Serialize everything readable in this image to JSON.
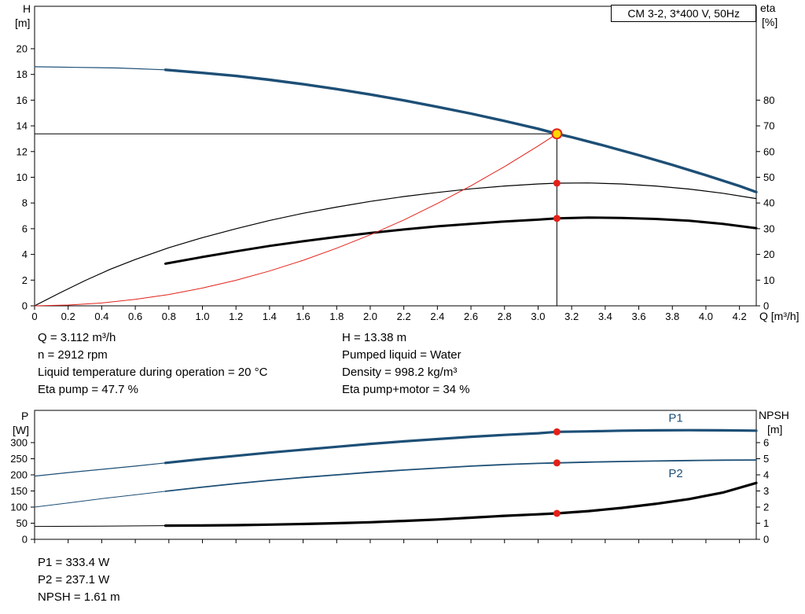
{
  "window": {
    "model_box_label": "CM 3-2, 3*400 V, 50Hz"
  },
  "results_top": {
    "left": [
      "Q = 3.112 m³/h",
      "n = 2912 rpm",
      "Liquid temperature during operation = 20 °C",
      "Eta pump = 47.7 %"
    ],
    "right": [
      "H = 13.38 m",
      "Pumped liquid = Water",
      "Density = 998.2 kg/m³",
      "Eta pump+motor = 34 %"
    ]
  },
  "results_bottom": [
    "P1 = 333.4 W",
    "P2 = 237.1 W",
    "NPSH = 1.61 m"
  ],
  "colors": {
    "curve_blue": "#1d4f76",
    "curve_red": "#e32119",
    "curve_black": "#000000",
    "point_yellow": "#ffd800"
  },
  "chart_data": [
    {
      "type": "line",
      "title": "CM 3-2, 3*400 V, 50Hz",
      "x": {
        "title": "Q [m³/h]",
        "min": 0,
        "max": 4.3,
        "ticks": [
          0,
          0.2,
          0.4,
          0.6,
          0.8,
          1,
          1.2,
          1.4,
          1.6,
          1.8,
          2,
          2.2,
          2.4,
          2.6,
          2.8,
          3,
          3.2,
          3.4,
          3.6,
          3.8,
          4,
          4.2
        ],
        "labels": [
          "0",
          "0.2",
          "0.4",
          "0.6",
          "0.8",
          "1.0",
          "1.2",
          "1.4",
          "1.6",
          "1.8",
          "2.0",
          "2.2",
          "2.4",
          "2.6",
          "2.8",
          "3.0",
          "3.2",
          "3.4",
          "3.6",
          "3.8",
          "4.0",
          "4.2"
        ]
      },
      "y1": {
        "letter": "H",
        "unit": "[m]",
        "min": 0,
        "max": 23.3,
        "ticks": [
          0,
          2,
          4,
          6,
          8,
          10,
          12,
          14,
          16,
          18,
          20
        ]
      },
      "y2": {
        "letter": "eta",
        "unit": "[%]",
        "min": 0,
        "max": 116.5,
        "ticks": [
          0,
          10,
          20,
          30,
          40,
          50,
          60,
          70,
          80
        ]
      },
      "series": [
        {
          "name": "QH-curve-low-flow",
          "axis": "y1",
          "color": "#1d4f76",
          "width": 1.2,
          "points": [
            [
              0,
              18.6
            ],
            [
              0.25,
              18.55
            ],
            [
              0.5,
              18.5
            ],
            [
              0.78,
              18.36
            ]
          ]
        },
        {
          "name": "QH-curve",
          "axis": "y1",
          "color": "#1d4f76",
          "width": 3.4,
          "points": [
            [
              0.78,
              18.36
            ],
            [
              1,
              18.12
            ],
            [
              1.2,
              17.88
            ],
            [
              1.4,
              17.58
            ],
            [
              1.6,
              17.24
            ],
            [
              1.8,
              16.86
            ],
            [
              2,
              16.44
            ],
            [
              2.2,
              15.98
            ],
            [
              2.4,
              15.48
            ],
            [
              2.6,
              14.95
            ],
            [
              2.8,
              14.38
            ],
            [
              3,
              13.77
            ],
            [
              3.112,
              13.38
            ],
            [
              3.2,
              13.12
            ],
            [
              3.4,
              12.44
            ],
            [
              3.6,
              11.72
            ],
            [
              3.8,
              10.96
            ],
            [
              4,
              10.16
            ],
            [
              4.2,
              9.32
            ],
            [
              4.3,
              8.85
            ]
          ]
        },
        {
          "name": "eta-pump-curve",
          "axis": "y2",
          "color": "#000000",
          "width": 1.2,
          "points": [
            [
              0,
              0
            ],
            [
              0.15,
              5
            ],
            [
              0.3,
              9.8
            ],
            [
              0.45,
              14.2
            ],
            [
              0.6,
              18
            ],
            [
              0.8,
              22.6
            ],
            [
              1,
              26.5
            ],
            [
              1.2,
              30
            ],
            [
              1.4,
              33.2
            ],
            [
              1.6,
              36
            ],
            [
              1.8,
              38.4
            ],
            [
              2,
              40.6
            ],
            [
              2.2,
              42.5
            ],
            [
              2.4,
              44.1
            ],
            [
              2.6,
              45.5
            ],
            [
              2.8,
              46.6
            ],
            [
              3,
              47.4
            ],
            [
              3.112,
              47.7
            ],
            [
              3.3,
              47.8
            ],
            [
              3.5,
              47.4
            ],
            [
              3.7,
              46.6
            ],
            [
              3.9,
              45.4
            ],
            [
              4.1,
              43.8
            ],
            [
              4.3,
              41.7
            ]
          ]
        },
        {
          "name": "eta-pump-motor-curve",
          "axis": "y2",
          "color": "#000000",
          "width": 3,
          "points": [
            [
              0.78,
              16.4
            ],
            [
              1,
              19
            ],
            [
              1.2,
              21.2
            ],
            [
              1.4,
              23.3
            ],
            [
              1.6,
              25.1
            ],
            [
              1.8,
              26.8
            ],
            [
              2,
              28.3
            ],
            [
              2.2,
              29.7
            ],
            [
              2.4,
              30.9
            ],
            [
              2.6,
              31.9
            ],
            [
              2.8,
              32.8
            ],
            [
              3,
              33.5
            ],
            [
              3.112,
              34
            ],
            [
              3.3,
              34.3
            ],
            [
              3.5,
              34.2
            ],
            [
              3.7,
              33.8
            ],
            [
              3.9,
              33.1
            ],
            [
              4.1,
              31.9
            ],
            [
              4.3,
              30.2
            ]
          ]
        },
        {
          "name": "system-curve",
          "axis": "y1",
          "color": "#e32119",
          "width": 1,
          "points": [
            [
              0,
              0
            ],
            [
              0.2,
              0.06
            ],
            [
              0.4,
              0.22
            ],
            [
              0.6,
              0.5
            ],
            [
              0.8,
              0.88
            ],
            [
              1,
              1.38
            ],
            [
              1.2,
              1.99
            ],
            [
              1.4,
              2.71
            ],
            [
              1.6,
              3.54
            ],
            [
              1.8,
              4.48
            ],
            [
              2,
              5.52
            ],
            [
              2.2,
              6.68
            ],
            [
              2.4,
              7.96
            ],
            [
              2.6,
              9.34
            ],
            [
              2.8,
              10.83
            ],
            [
              3,
              12.43
            ],
            [
              3.112,
              13.38
            ]
          ]
        }
      ],
      "ref_lines": [
        {
          "from": [
            3.112,
            0
          ],
          "to": [
            3.112,
            13.38
          ],
          "axis": "y1",
          "color": "#000000",
          "width": 1
        },
        {
          "from": [
            0,
            13.38
          ],
          "to": [
            3.112,
            13.38
          ],
          "axis": "y1",
          "color": "#000000",
          "width": 1
        }
      ],
      "markers": [
        {
          "name": "eta-pump-point",
          "x": 3.112,
          "y": 47.7,
          "axis": "y2",
          "r": 4.5,
          "fill": "#e32119"
        },
        {
          "name": "eta-pump-motor-point",
          "x": 3.112,
          "y": 34,
          "axis": "y2",
          "r": 4.5,
          "fill": "#e32119"
        },
        {
          "name": "duty-point",
          "x": 3.112,
          "y": 13.38,
          "axis": "y1",
          "r": 6,
          "fill": "#ffd800",
          "stroke": "#e32119",
          "sw": 2
        }
      ]
    },
    {
      "type": "line",
      "title": "",
      "x": {
        "title": "",
        "min": 0,
        "max": 4.3,
        "ticks": [
          0,
          0.2,
          0.4,
          0.6,
          0.8,
          1,
          1.2,
          1.4,
          1.6,
          1.8,
          2,
          2.2,
          2.4,
          2.6,
          2.8,
          3,
          3.2,
          3.4,
          3.6,
          3.8,
          4,
          4.2
        ]
      },
      "y1": {
        "letter": "P",
        "unit": "[W]",
        "min": 0,
        "max": 400,
        "ticks": [
          0,
          50,
          100,
          150,
          200,
          250,
          300
        ]
      },
      "y2": {
        "letter": "NPSH",
        "unit": "[m]",
        "min": 0,
        "max": 8,
        "ticks": [
          0,
          1,
          2,
          3,
          4,
          5,
          6
        ]
      },
      "series": [
        {
          "name": "P1-curve-low-flow",
          "axis": "y1",
          "color": "#1d4f76",
          "width": 1.2,
          "points": [
            [
              0,
              196
            ],
            [
              0.2,
              207
            ],
            [
              0.4,
              217
            ],
            [
              0.6,
              227
            ],
            [
              0.78,
              237
            ]
          ]
        },
        {
          "name": "P1-curve",
          "axis": "y1",
          "color": "#1d4f76",
          "width": 3.2,
          "points": [
            [
              0.78,
              237
            ],
            [
              1,
              249
            ],
            [
              1.2,
              259
            ],
            [
              1.4,
              269
            ],
            [
              1.6,
              278
            ],
            [
              1.8,
              287
            ],
            [
              2,
              296
            ],
            [
              2.2,
              304
            ],
            [
              2.4,
              311
            ],
            [
              2.6,
              318
            ],
            [
              2.8,
              324
            ],
            [
              3,
              329
            ],
            [
              3.112,
              333.4
            ],
            [
              3.3,
              335
            ],
            [
              3.5,
              337
            ],
            [
              3.7,
              338
            ],
            [
              3.9,
              338.5
            ],
            [
              4.1,
              338
            ],
            [
              4.3,
              337
            ]
          ]
        },
        {
          "name": "P2-curve-low-flow",
          "axis": "y1",
          "color": "#1d4f76",
          "width": 1,
          "points": [
            [
              0,
              100
            ],
            [
              0.2,
              113
            ],
            [
              0.4,
              126
            ],
            [
              0.6,
              138
            ],
            [
              0.78,
              149
            ]
          ]
        },
        {
          "name": "P2-curve",
          "axis": "y1",
          "color": "#1d4f76",
          "width": 1.8,
          "points": [
            [
              0.78,
              149
            ],
            [
              1,
              162
            ],
            [
              1.2,
              173
            ],
            [
              1.4,
              183
            ],
            [
              1.6,
              192
            ],
            [
              1.8,
              200
            ],
            [
              2,
              208
            ],
            [
              2.2,
              215
            ],
            [
              2.4,
              221
            ],
            [
              2.6,
              227
            ],
            [
              2.8,
              232
            ],
            [
              3,
              235.5
            ],
            [
              3.112,
              237.1
            ],
            [
              3.3,
              239.5
            ],
            [
              3.5,
              241.5
            ],
            [
              3.7,
              243
            ],
            [
              3.9,
              244.5
            ],
            [
              4.1,
              245.5
            ],
            [
              4.3,
              246
            ]
          ]
        },
        {
          "name": "NPSH-curve-low-flow",
          "axis": "y2",
          "color": "#000000",
          "width": 1,
          "points": [
            [
              0,
              0.8
            ],
            [
              0.4,
              0.82
            ],
            [
              0.78,
              0.85
            ]
          ]
        },
        {
          "name": "NPSH-curve",
          "axis": "y2",
          "color": "#000000",
          "width": 3.2,
          "points": [
            [
              0.78,
              0.85
            ],
            [
              1,
              0.86
            ],
            [
              1.2,
              0.88
            ],
            [
              1.4,
              0.91
            ],
            [
              1.6,
              0.95
            ],
            [
              1.8,
              1
            ],
            [
              2,
              1.06
            ],
            [
              2.2,
              1.14
            ],
            [
              2.4,
              1.23
            ],
            [
              2.6,
              1.34
            ],
            [
              2.8,
              1.46
            ],
            [
              3,
              1.55
            ],
            [
              3.112,
              1.61
            ],
            [
              3.3,
              1.75
            ],
            [
              3.5,
              1.95
            ],
            [
              3.7,
              2.2
            ],
            [
              3.9,
              2.5
            ],
            [
              4.1,
              2.9
            ],
            [
              4.3,
              3.5
            ]
          ]
        }
      ],
      "ref_lines": [],
      "markers": [
        {
          "name": "P1-point",
          "x": 3.112,
          "y": 333.4,
          "axis": "y1",
          "r": 4.5,
          "fill": "#e32119"
        },
        {
          "name": "P2-point",
          "x": 3.112,
          "y": 237.1,
          "axis": "y1",
          "r": 4.5,
          "fill": "#e32119"
        },
        {
          "name": "NPSH-point",
          "x": 3.112,
          "y": 1.61,
          "axis": "y2",
          "r": 4.5,
          "fill": "#e32119"
        }
      ],
      "labels": [
        {
          "x": 3.82,
          "y": 365,
          "axis": "y1",
          "text": "P1",
          "color": "#1d4f76"
        },
        {
          "x": 3.82,
          "y": 193,
          "axis": "y1",
          "text": "P2",
          "color": "#1d4f76"
        }
      ]
    }
  ]
}
